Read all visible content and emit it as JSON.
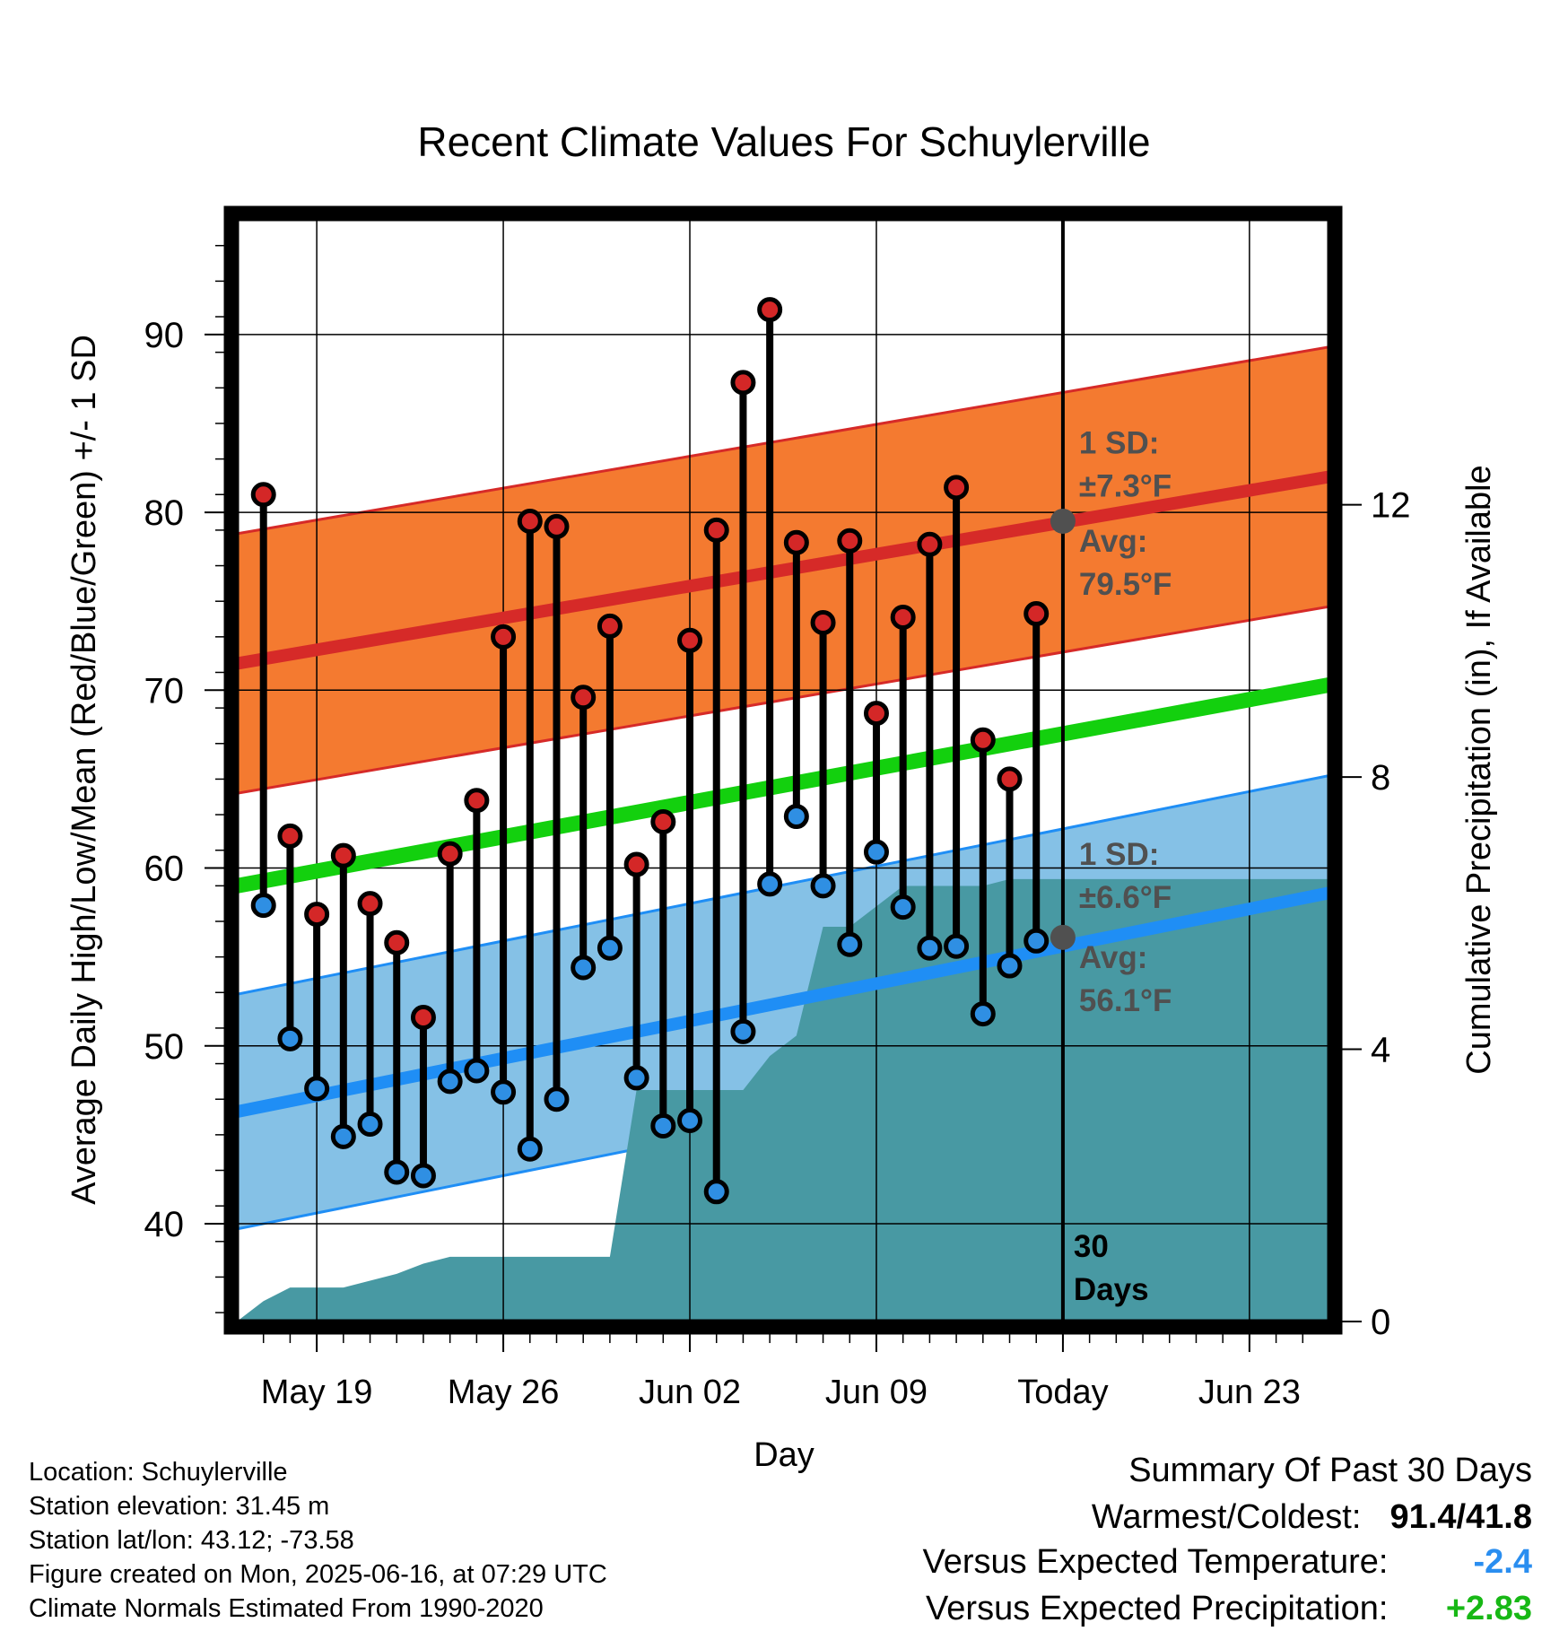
{
  "chart_data": {
    "type": "line",
    "title": "Recent Climate Values For Schuylerville",
    "xlabel": "Day",
    "ylabel": "Average Daily High/Low/Mean (Red/Blue/Green) +/- 1 SD",
    "y2label": "Cumulative Precipitation (in), If Available",
    "ylim": [
      34.5,
      96.5
    ],
    "y2lim": [
      0,
      16.2
    ],
    "yticks": [
      "40",
      "50",
      "60",
      "70",
      "80",
      "90"
    ],
    "y2ticks": [
      "0",
      "4",
      "8",
      "12"
    ],
    "xticks": [
      "May 19",
      "May 26",
      "Jun 02",
      "Jun 09",
      "Today",
      "Jun 23"
    ],
    "x_start": "2025-05-16",
    "x_end": "2025-06-26",
    "today": "2025-06-16",
    "days": [
      "2025-05-17",
      "2025-05-18",
      "2025-05-19",
      "2025-05-20",
      "2025-05-21",
      "2025-05-22",
      "2025-05-23",
      "2025-05-24",
      "2025-05-25",
      "2025-05-26",
      "2025-05-27",
      "2025-05-28",
      "2025-05-29",
      "2025-05-30",
      "2025-05-31",
      "2025-06-01",
      "2025-06-02",
      "2025-06-03",
      "2025-06-04",
      "2025-06-05",
      "2025-06-06",
      "2025-06-07",
      "2025-06-08",
      "2025-06-09",
      "2025-06-10",
      "2025-06-11",
      "2025-06-12",
      "2025-06-13",
      "2025-06-14",
      "2025-06-15"
    ],
    "highs": [
      81.0,
      61.8,
      57.4,
      60.7,
      58.0,
      55.8,
      51.6,
      60.8,
      63.8,
      73.0,
      79.5,
      79.2,
      69.6,
      73.6,
      60.2,
      62.6,
      72.8,
      79.0,
      87.3,
      91.4,
      78.3,
      73.8,
      78.4,
      68.7,
      74.1,
      78.2,
      81.4,
      67.2,
      65.0,
      74.3
    ],
    "lows": [
      57.9,
      50.4,
      47.6,
      44.9,
      45.6,
      42.9,
      42.7,
      48.0,
      48.6,
      47.4,
      44.2,
      47.0,
      54.4,
      55.5,
      48.2,
      45.5,
      45.8,
      41.8,
      50.8,
      59.1,
      62.9,
      59.0,
      55.7,
      60.9,
      57.8,
      55.5,
      55.6,
      51.8,
      54.5,
      55.9
    ],
    "normal_high_range": [
      71.5,
      82.0
    ],
    "normal_low_range": [
      46.3,
      58.6
    ],
    "normal_mean_range": [
      59.0,
      70.3
    ],
    "sd_high": 7.3,
    "sd_low": 6.6,
    "precip_days": [
      "2025-05-16",
      "2025-05-17",
      "2025-05-18",
      "2025-05-19",
      "2025-05-20",
      "2025-05-21",
      "2025-05-22",
      "2025-05-23",
      "2025-05-24",
      "2025-05-25",
      "2025-05-26",
      "2025-05-27",
      "2025-05-28",
      "2025-05-29",
      "2025-05-30",
      "2025-05-31",
      "2025-06-01",
      "2025-06-02",
      "2025-06-03",
      "2025-06-04",
      "2025-06-05",
      "2025-06-06",
      "2025-06-07",
      "2025-06-08",
      "2025-06-09",
      "2025-06-10",
      "2025-06-11",
      "2025-06-12",
      "2025-06-13",
      "2025-06-14",
      "2025-06-15",
      "2025-06-16",
      "2025-06-26"
    ],
    "precip_cum": [
      0.0,
      0.3,
      0.5,
      0.5,
      0.5,
      0.6,
      0.7,
      0.85,
      0.95,
      0.95,
      0.95,
      0.95,
      0.95,
      0.95,
      0.95,
      3.4,
      3.4,
      3.4,
      3.4,
      3.4,
      3.9,
      4.2,
      5.8,
      5.8,
      6.1,
      6.4,
      6.4,
      6.4,
      6.4,
      6.5,
      6.5,
      6.5,
      6.5
    ],
    "annotations": {
      "high_sd_label": "1 SD:",
      "high_sd_value": "±7.3°F",
      "high_avg_label": "Avg:",
      "high_avg_value": "79.5°F",
      "low_sd_label": "1 SD:",
      "low_sd_value": "±6.6°F",
      "low_avg_label": "Avg:",
      "low_avg_value": "56.1°F",
      "today_avg_high": 79.5,
      "today_avg_low": 56.1,
      "days_number": "30",
      "days_word": "Days"
    },
    "colors": {
      "high_band": "#f47a30",
      "high_line": "#d62a28",
      "low_band": "#85c1e6",
      "low_line": "#1f8ef5",
      "mean_line": "#13d00e",
      "precip": "#4899a3",
      "high_dot": "#d42727",
      "low_dot": "#2f8fe3",
      "label": "#505050"
    }
  },
  "info": {
    "location": "Location: Schuylerville",
    "elevation": "Station elevation: 31.45 m",
    "latlon": "Station lat/lon: 43.12; -73.58",
    "created": "Figure created on Mon, 2025-06-16, at 07:29 UTC",
    "normals": "Climate Normals Estimated From 1990-2020"
  },
  "summary": {
    "heading": "Summary Of Past 30 Days",
    "warmest_label": "Warmest/Coldest:",
    "warmest_value": "91.4/41.8",
    "temp_label": "Versus Expected Temperature:",
    "temp_value": "-2.4",
    "temp_color": "#2a8ef0",
    "precip_label": "Versus Expected Precipitation:",
    "precip_value": "+2.83",
    "precip_color": "#17b815"
  }
}
